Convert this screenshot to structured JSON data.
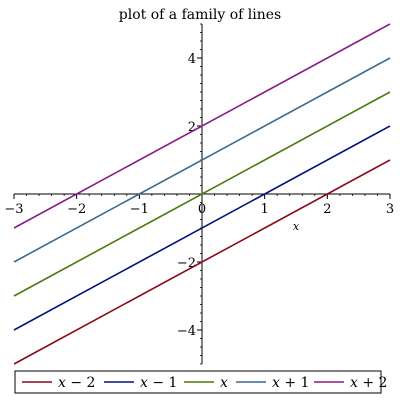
{
  "chart_data": {
    "type": "line",
    "title": "plot of a family of lines",
    "xlabel": "x",
    "ylabel": "",
    "xlim": [
      -3,
      3
    ],
    "ylim": [
      -5,
      5
    ],
    "x_ticks": [
      -3,
      -2,
      -1,
      0,
      1,
      2,
      3
    ],
    "y_ticks": [
      -4,
      -2,
      2,
      4
    ],
    "x_tick_labels": [
      "−3",
      "−2",
      "−1",
      "0",
      "1",
      "2",
      "3"
    ],
    "y_tick_labels": [
      "−4",
      "−2",
      "2",
      "4"
    ],
    "grid": false,
    "legend_position": "bottom",
    "series": [
      {
        "name": "x − 2",
        "var": "x",
        "op": " − 2",
        "slope": 1,
        "intercept": -2,
        "color": "#8b0a1a"
      },
      {
        "name": "x − 1",
        "var": "x",
        "op": " − 1",
        "slope": 1,
        "intercept": -1,
        "color": "#00147a"
      },
      {
        "name": "x",
        "var": "x",
        "op": "",
        "slope": 1,
        "intercept": 0,
        "color": "#4a7a0a"
      },
      {
        "name": "x + 1",
        "var": "x",
        "op": " + 1",
        "slope": 1,
        "intercept": 1,
        "color": "#3a6a8e"
      },
      {
        "name": "x + 2",
        "var": "x",
        "op": " + 2",
        "slope": 1,
        "intercept": 2,
        "color": "#8a1a8a"
      }
    ]
  }
}
